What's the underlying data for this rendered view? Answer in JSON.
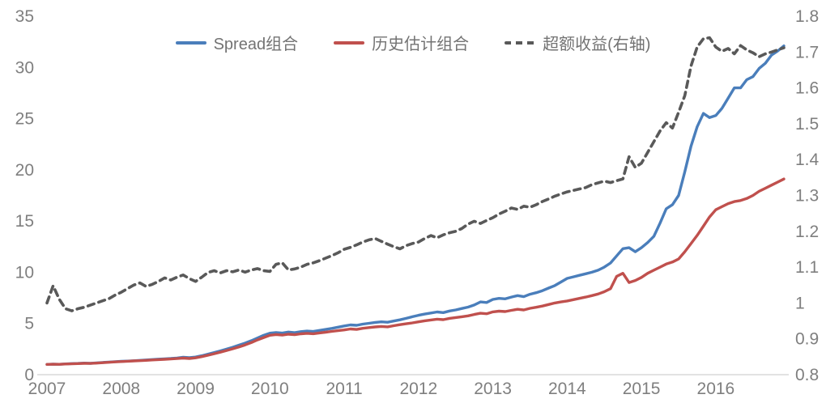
{
  "chart_data": {
    "type": "line",
    "title": "",
    "x_start": "2007-01",
    "x_frequency": "monthly",
    "x_tick_labels": [
      "2007",
      "2008",
      "2009",
      "2010",
      "2011",
      "2012",
      "2013",
      "2014",
      "2015",
      "2016"
    ],
    "left_axis": {
      "min": 0,
      "max": 35,
      "tick_labels": [
        "0",
        "5",
        "10",
        "15",
        "20",
        "25",
        "30",
        "35"
      ]
    },
    "right_axis": {
      "min": 0.8,
      "max": 1.8,
      "tick_labels": [
        "0.8",
        "0.9",
        "1",
        "1.1",
        "1.2",
        "1.3",
        "1.4",
        "1.5",
        "1.6",
        "1.7",
        "1.8"
      ]
    },
    "grid": false,
    "legend_position": "top-center",
    "axis_line_color": "#d9d9d9",
    "tick_text_color": "#7f7f7f",
    "series": [
      {
        "name": "Spread组合",
        "axis": "left",
        "style": "solid",
        "color": "#4a7ebb",
        "values": [
          1.0,
          1.03,
          1.01,
          1.05,
          1.08,
          1.1,
          1.13,
          1.11,
          1.15,
          1.19,
          1.23,
          1.27,
          1.3,
          1.33,
          1.36,
          1.4,
          1.44,
          1.48,
          1.52,
          1.55,
          1.58,
          1.63,
          1.7,
          1.66,
          1.72,
          1.85,
          2.0,
          2.16,
          2.32,
          2.5,
          2.68,
          2.88,
          3.08,
          3.32,
          3.58,
          3.85,
          4.05,
          4.12,
          4.06,
          4.16,
          4.1,
          4.2,
          4.26,
          4.22,
          4.32,
          4.42,
          4.52,
          4.64,
          4.76,
          4.86,
          4.82,
          4.94,
          5.02,
          5.1,
          5.16,
          5.12,
          5.24,
          5.36,
          5.5,
          5.66,
          5.8,
          5.92,
          6.02,
          6.12,
          6.06,
          6.22,
          6.32,
          6.46,
          6.6,
          6.8,
          7.1,
          7.05,
          7.35,
          7.45,
          7.4,
          7.58,
          7.72,
          7.62,
          7.85,
          8.0,
          8.2,
          8.45,
          8.7,
          9.05,
          9.4,
          9.55,
          9.7,
          9.85,
          10.0,
          10.2,
          10.5,
          10.9,
          11.6,
          12.3,
          12.4,
          12.0,
          12.4,
          12.9,
          13.5,
          14.8,
          16.2,
          16.6,
          17.5,
          19.8,
          22.3,
          24.2,
          25.5,
          25.1,
          25.3,
          26.0,
          27.0,
          28.0,
          28.0,
          28.8,
          29.1,
          29.9,
          30.4,
          31.2,
          31.6,
          32.1
        ]
      },
      {
        "name": "历史估计组合",
        "axis": "left",
        "style": "solid",
        "color": "#c0504d",
        "values": [
          1.0,
          1.02,
          1.01,
          1.04,
          1.06,
          1.08,
          1.11,
          1.1,
          1.13,
          1.17,
          1.21,
          1.25,
          1.28,
          1.31,
          1.34,
          1.37,
          1.4,
          1.44,
          1.47,
          1.5,
          1.53,
          1.57,
          1.62,
          1.58,
          1.64,
          1.76,
          1.9,
          2.05,
          2.2,
          2.36,
          2.53,
          2.71,
          2.91,
          3.14,
          3.4,
          3.63,
          3.85,
          3.92,
          3.86,
          3.95,
          3.9,
          3.99,
          4.04,
          4.0,
          4.08,
          4.15,
          4.23,
          4.3,
          4.37,
          4.46,
          4.42,
          4.53,
          4.6,
          4.66,
          4.71,
          4.67,
          4.78,
          4.88,
          4.97,
          5.06,
          5.16,
          5.26,
          5.34,
          5.42,
          5.37,
          5.5,
          5.58,
          5.66,
          5.74,
          5.88,
          6.0,
          5.95,
          6.13,
          6.2,
          6.16,
          6.28,
          6.38,
          6.32,
          6.48,
          6.58,
          6.7,
          6.85,
          7.0,
          7.1,
          7.2,
          7.32,
          7.45,
          7.58,
          7.72,
          7.88,
          8.1,
          8.4,
          9.6,
          9.9,
          9.0,
          9.2,
          9.5,
          9.9,
          10.2,
          10.5,
          10.8,
          11.0,
          11.3,
          12.0,
          12.8,
          13.6,
          14.5,
          15.4,
          16.1,
          16.4,
          16.7,
          16.9,
          17.0,
          17.2,
          17.5,
          17.9,
          18.2,
          18.5,
          18.8,
          19.1
        ]
      },
      {
        "name": "超额收益(右轴)",
        "axis": "right",
        "style": "dashed",
        "color": "#595959",
        "values": [
          1.0,
          1.048,
          1.01,
          0.984,
          0.978,
          0.984,
          0.988,
          0.994,
          1.0,
          1.006,
          1.012,
          1.022,
          1.03,
          1.04,
          1.05,
          1.056,
          1.046,
          1.052,
          1.06,
          1.07,
          1.064,
          1.072,
          1.078,
          1.068,
          1.06,
          1.072,
          1.085,
          1.09,
          1.084,
          1.09,
          1.087,
          1.092,
          1.086,
          1.092,
          1.096,
          1.09,
          1.088,
          1.108,
          1.112,
          1.092,
          1.095,
          1.1,
          1.108,
          1.112,
          1.118,
          1.125,
          1.132,
          1.14,
          1.15,
          1.155,
          1.162,
          1.17,
          1.176,
          1.18,
          1.172,
          1.164,
          1.157,
          1.151,
          1.16,
          1.166,
          1.17,
          1.18,
          1.188,
          1.182,
          1.19,
          1.196,
          1.2,
          1.208,
          1.22,
          1.228,
          1.222,
          1.23,
          1.238,
          1.248,
          1.256,
          1.265,
          1.261,
          1.27,
          1.267,
          1.274,
          1.283,
          1.29,
          1.298,
          1.304,
          1.31,
          1.314,
          1.318,
          1.322,
          1.33,
          1.335,
          1.34,
          1.336,
          1.341,
          1.346,
          1.408,
          1.378,
          1.39,
          1.42,
          1.45,
          1.48,
          1.503,
          1.488,
          1.532,
          1.578,
          1.661,
          1.714,
          1.737,
          1.74,
          1.714,
          1.702,
          1.71,
          1.695,
          1.718,
          1.706,
          1.698,
          1.687,
          1.695,
          1.7,
          1.706,
          1.712
        ]
      }
    ]
  }
}
